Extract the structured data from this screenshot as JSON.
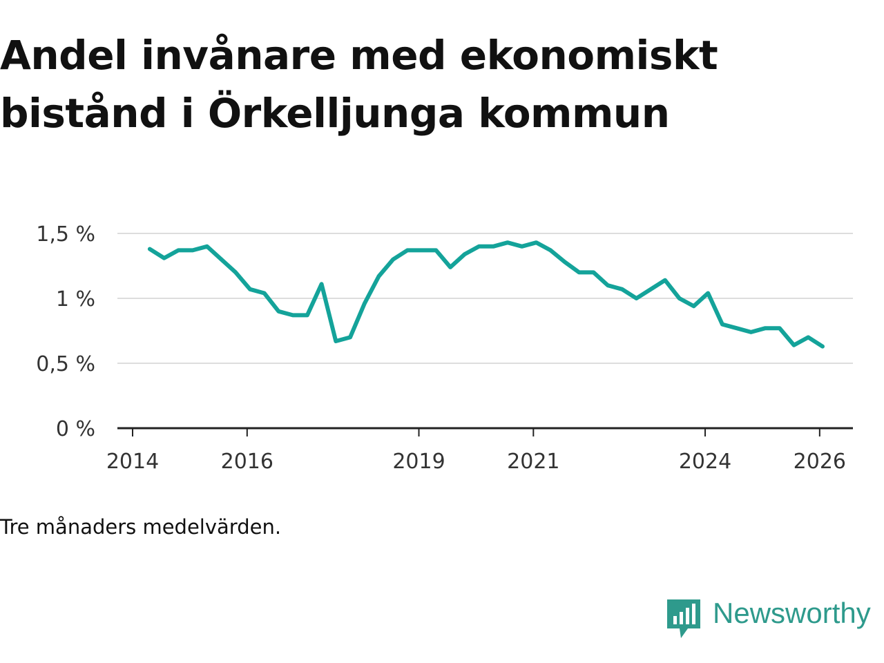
{
  "title": {
    "line1": "Andel invånare med ekonomiskt",
    "line2": "bistånd i Örkelljunga kommun"
  },
  "note": "Tre månaders medelvärden.",
  "brand": {
    "name": "Newsworthy",
    "icon": "newsworthy-logo-icon"
  },
  "colors": {
    "line": "#14a39a",
    "grid": "#dddddd",
    "axis": "#222222",
    "brand": "#2e9a8c"
  },
  "chart_data": {
    "type": "line",
    "title": "Andel invånare med ekonomiskt bistånd i Örkelljunga kommun",
    "xlabel": "",
    "ylabel": "",
    "ylim": [
      0,
      1.5
    ],
    "xlim": [
      2014.0,
      2026.4
    ],
    "grid": true,
    "y_ticks": [
      {
        "value": 0,
        "label": "0 %"
      },
      {
        "value": 0.5,
        "label": "0,5 %"
      },
      {
        "value": 1,
        "label": "1 %"
      },
      {
        "value": 1.5,
        "label": "1,5 %"
      }
    ],
    "x_ticks": [
      {
        "value": 2014,
        "label": "2014"
      },
      {
        "value": 2016,
        "label": "2016"
      },
      {
        "value": 2019,
        "label": "2019"
      },
      {
        "value": 2021,
        "label": "2021"
      },
      {
        "value": 2024,
        "label": "2024"
      },
      {
        "value": 2026,
        "label": "2026"
      }
    ],
    "series": [
      {
        "name": "Andel invånare med ekonomiskt bistånd",
        "x": [
          2014.3,
          2014.55,
          2014.8,
          2015.05,
          2015.3,
          2015.55,
          2015.8,
          2016.05,
          2016.3,
          2016.55,
          2016.8,
          2017.05,
          2017.3,
          2017.55,
          2017.8,
          2018.05,
          2018.3,
          2018.55,
          2018.8,
          2019.05,
          2019.3,
          2019.55,
          2019.8,
          2020.05,
          2020.3,
          2020.55,
          2020.8,
          2021.05,
          2021.3,
          2021.55,
          2021.8,
          2022.05,
          2022.3,
          2022.55,
          2022.8,
          2023.05,
          2023.3,
          2023.55,
          2023.8,
          2024.05,
          2024.3,
          2024.55,
          2024.8,
          2025.05,
          2025.3,
          2025.55,
          2025.8,
          2026.05
        ],
        "values": [
          1.38,
          1.31,
          1.37,
          1.37,
          1.4,
          1.3,
          1.2,
          1.07,
          1.04,
          0.9,
          0.87,
          0.87,
          1.11,
          0.67,
          0.7,
          0.96,
          1.17,
          1.3,
          1.37,
          1.37,
          1.37,
          1.24,
          1.34,
          1.4,
          1.4,
          1.43,
          1.4,
          1.43,
          1.37,
          1.28,
          1.2,
          1.2,
          1.1,
          1.07,
          1.0,
          1.07,
          1.14,
          1.0,
          0.94,
          1.04,
          0.8,
          0.77,
          0.74,
          0.77,
          0.77,
          0.64,
          0.7,
          0.63
        ]
      }
    ]
  }
}
